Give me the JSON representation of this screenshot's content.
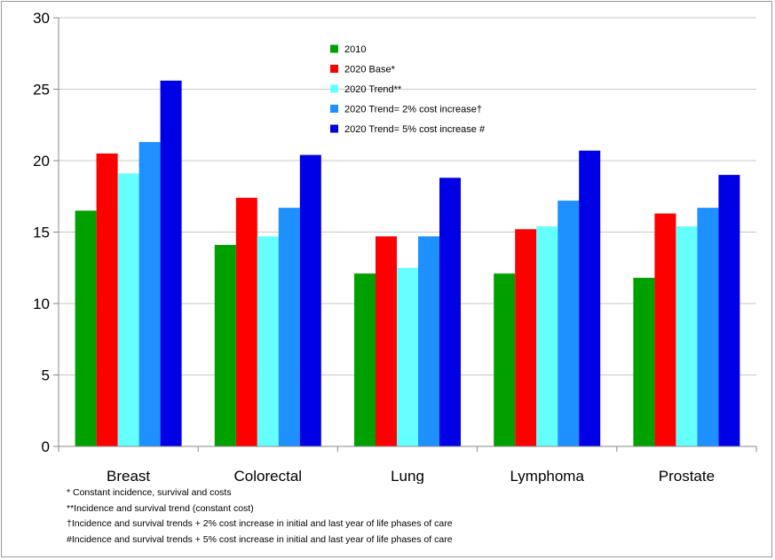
{
  "chart_data": {
    "type": "bar",
    "title": "",
    "xlabel": "",
    "ylabel": "",
    "ylim": [
      0,
      30
    ],
    "yticks": [
      0,
      5,
      10,
      15,
      20,
      25,
      30
    ],
    "grid": true,
    "legend_position": "top-center",
    "categories": [
      "Breast",
      "Colorectal",
      "Lung",
      "Lymphoma",
      "Prostate"
    ],
    "series": [
      {
        "name": "2010",
        "color": "#00A000",
        "values": [
          16.5,
          14.1,
          12.1,
          12.1,
          11.8
        ]
      },
      {
        "name": "2020 Base*",
        "color": "#FF0000",
        "values": [
          20.5,
          17.4,
          14.7,
          15.2,
          16.3
        ]
      },
      {
        "name": "2020 Trend**",
        "color": "#66FFFF",
        "values": [
          19.1,
          14.7,
          12.5,
          15.4,
          15.4
        ]
      },
      {
        "name": "2020 Trend= 2% cost increase†",
        "color": "#1E90FF",
        "values": [
          21.3,
          16.7,
          14.7,
          17.2,
          16.7
        ]
      },
      {
        "name": "2020 Trend= 5% cost increase #",
        "color": "#0000E6",
        "values": [
          25.6,
          20.4,
          18.8,
          20.7,
          19.0
        ]
      }
    ]
  },
  "footnotes": [
    "* Constant incidence, survival and costs",
    "**Incidence and survival trend (constant cost)",
    "†Incidence and survival trends + 2% cost increase in initial and last year of life phases of care",
    "#Incidence and survival trends + 5% cost increase in initial and last year of life phases of care"
  ]
}
